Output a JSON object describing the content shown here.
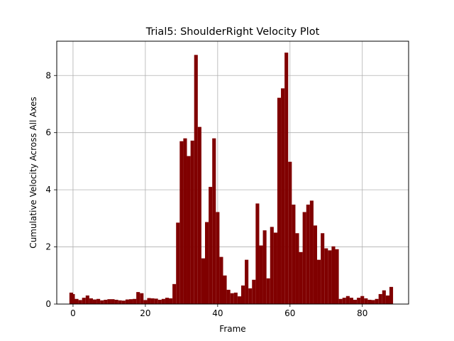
{
  "chart_data": {
    "type": "bar",
    "title": "Trial5: ShoulderRight Velocity Plot",
    "xlabel": "Frame",
    "ylabel": "Cumulative Velocity Across All Axes",
    "xlim": [
      -4.5,
      92.8
    ],
    "ylim": [
      0,
      9.2
    ],
    "xticks": [
      0,
      20,
      40,
      60,
      80
    ],
    "yticks": [
      0,
      2,
      4,
      6,
      8
    ],
    "grid": true,
    "bar_color": "#800000",
    "bar_width": 1,
    "x": [
      -0.5,
      0,
      1,
      2,
      3,
      4,
      5,
      6,
      7,
      8,
      9,
      10,
      11,
      12,
      13,
      14,
      15,
      16,
      17,
      18,
      19,
      20,
      21,
      22,
      23,
      24,
      25,
      26,
      27,
      28,
      29,
      30,
      31,
      32,
      33,
      34,
      35,
      36,
      37,
      38,
      39,
      40,
      41,
      42,
      43,
      44,
      45,
      46,
      47,
      48,
      49,
      50,
      51,
      52,
      53,
      54,
      55,
      56,
      57,
      58,
      59,
      60,
      61,
      62,
      63,
      64,
      65,
      66,
      67,
      68,
      69,
      70,
      71,
      72,
      73,
      74,
      75,
      76,
      77,
      78,
      79,
      80,
      81,
      82,
      83,
      84,
      85,
      86,
      87,
      88
    ],
    "values": [
      0.4,
      0.35,
      0.18,
      0.14,
      0.22,
      0.3,
      0.2,
      0.16,
      0.18,
      0.13,
      0.15,
      0.17,
      0.17,
      0.15,
      0.13,
      0.12,
      0.16,
      0.17,
      0.18,
      0.42,
      0.38,
      0.14,
      0.21,
      0.2,
      0.19,
      0.15,
      0.18,
      0.22,
      0.2,
      0.7,
      2.85,
      5.7,
      5.8,
      5.18,
      5.72,
      8.72,
      6.2,
      1.6,
      2.87,
      4.1,
      5.8,
      3.22,
      1.65,
      1.0,
      0.5,
      0.38,
      0.4,
      0.27,
      0.65,
      1.55,
      0.55,
      0.85,
      3.52,
      2.05,
      2.58,
      0.9,
      2.7,
      2.5,
      7.22,
      7.55,
      8.8,
      4.98,
      3.48,
      2.48,
      1.82,
      3.22,
      3.48,
      3.62,
      2.75,
      1.55,
      2.48,
      1.95,
      1.88,
      2.02,
      1.92,
      0.18,
      0.22,
      0.28,
      0.22,
      0.15,
      0.22,
      0.28,
      0.2,
      0.15,
      0.14,
      0.18,
      0.35,
      0.48,
      0.3,
      0.6
    ]
  }
}
